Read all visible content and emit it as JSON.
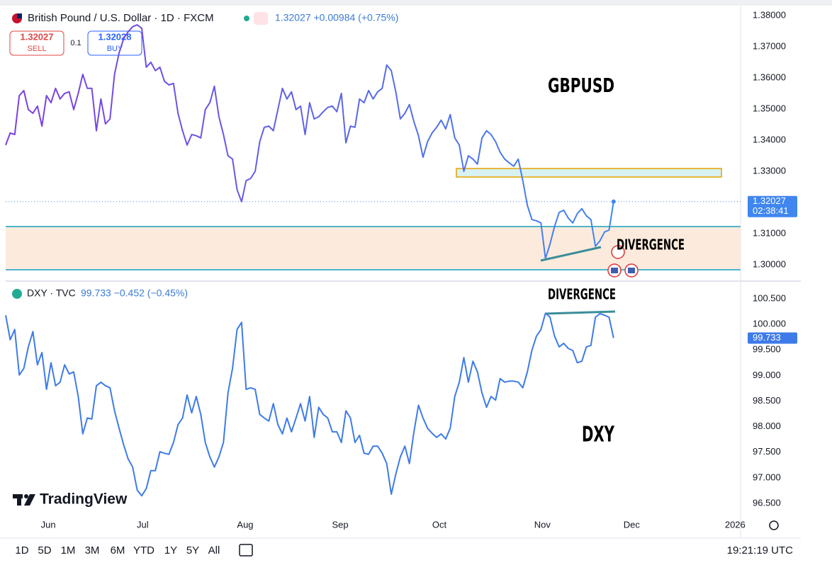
{
  "header": {
    "symbol": "British Pound / U.S. Dollar · 1D · FXCM",
    "quote": "1.32027 +0.00984 (+0.75%)"
  },
  "trade": {
    "sell_price": "1.32027",
    "sell": "SELL",
    "qty": "0.1",
    "buy_price": "1.32028",
    "buy": "BUY"
  },
  "logo": "TradingView",
  "toolbar": {
    "ranges": [
      "1D",
      "5D",
      "1M",
      "3M",
      "6M",
      "YTD",
      "1Y",
      "5Y",
      "All"
    ],
    "time": "19:21:19 UTC"
  },
  "chart_data": [
    {
      "type": "line",
      "title": "GBPUSD",
      "color": "#6a55e6",
      "annotations": [
        "GBPUSD",
        "DIVERGENCE"
      ],
      "last_label": "1.32027",
      "countdown": "02:38:41",
      "xlim": [
        0,
        162
      ],
      "ylim": [
        1.2952,
        1.3827
      ],
      "yticks": [
        {
          "value": 1.38,
          "label": "1.38000"
        },
        {
          "value": 1.37,
          "label": "1.37000"
        },
        {
          "value": 1.36,
          "label": "1.36000"
        },
        {
          "value": 1.35,
          "label": "1.35000"
        },
        {
          "value": 1.34,
          "label": "1.34000"
        },
        {
          "value": 1.33,
          "label": "1.33000"
        },
        {
          "value": 1.32,
          "label": "1.32000"
        },
        {
          "value": 1.31,
          "label": "1.31000"
        },
        {
          "value": 1.3,
          "label": "1.30000"
        }
      ],
      "values": [
        1.3384,
        1.3423,
        1.3418,
        1.3543,
        1.3559,
        1.3498,
        1.3486,
        1.3509,
        1.3445,
        1.3543,
        1.352,
        1.3566,
        1.3532,
        1.355,
        1.3555,
        1.3498,
        1.355,
        1.3611,
        1.3566,
        1.3566,
        1.343,
        1.3532,
        1.3452,
        1.3468,
        1.3611,
        1.368,
        1.3725,
        1.3748,
        1.3764,
        1.377,
        1.3759,
        1.3634,
        1.365,
        1.3623,
        1.3634,
        1.3589,
        1.3577,
        1.3582,
        1.3486,
        1.343,
        1.3384,
        1.3418,
        1.3414,
        1.3407,
        1.3498,
        1.352,
        1.3573,
        1.3475,
        1.3418,
        1.335,
        1.3339,
        1.3241,
        1.3202,
        1.327,
        1.3277,
        1.33,
        1.3395,
        1.3441,
        1.3445,
        1.343,
        1.3498,
        1.3566,
        1.3532,
        1.3555,
        1.3498,
        1.3509,
        1.3418,
        1.352,
        1.3468,
        1.3475,
        1.3491,
        1.3505,
        1.3509,
        1.3491,
        1.355,
        1.3391,
        1.3445,
        1.3441,
        1.3532,
        1.352,
        1.3559,
        1.3532,
        1.3555,
        1.3566,
        1.3641,
        1.3623,
        1.3555,
        1.3468,
        1.3486,
        1.3514,
        1.3459,
        1.3414,
        1.3345,
        1.3395,
        1.3423,
        1.3441,
        1.3464,
        1.3436,
        1.3482,
        1.3407,
        1.3384,
        1.33,
        1.335,
        1.3339,
        1.3323,
        1.3407,
        1.343,
        1.3418,
        1.3395,
        1.3361,
        1.3339,
        1.3327,
        1.3316,
        1.3339,
        1.327,
        1.3191,
        1.3145,
        1.3141,
        1.3134,
        1.302,
        1.3066,
        1.3123,
        1.3168,
        1.3175,
        1.315,
        1.3134,
        1.3164,
        1.318,
        1.3157,
        1.3145,
        1.3059,
        1.3077,
        1.3105,
        1.3111,
        1.32027
      ]
    },
    {
      "type": "line",
      "title": "DXY · TVC",
      "quote": "99.733 −0.452 (−0.45%)",
      "color": "#3e7be8",
      "annotations": [
        "DIVERGENCE",
        "DXY"
      ],
      "last_label": "99.733",
      "xlim": [
        0,
        162
      ],
      "ylim": [
        96.237,
        100.805
      ],
      "yticks": [
        {
          "value": 100.5,
          "label": "100.500"
        },
        {
          "value": 100,
          "label": "100.000"
        },
        {
          "value": 99.5,
          "label": "99.500"
        },
        {
          "value": 99,
          "label": "99.000"
        },
        {
          "value": 98.5,
          "label": "98.500"
        },
        {
          "value": 98,
          "label": "98.000"
        },
        {
          "value": 97.5,
          "label": "97.500"
        },
        {
          "value": 97,
          "label": "97.000"
        },
        {
          "value": 96.5,
          "label": "96.500"
        }
      ],
      "xticks": [
        {
          "value": 9.4,
          "label": "Jun"
        },
        {
          "value": 30.2,
          "label": "Jul"
        },
        {
          "value": 52.8,
          "label": "Aug"
        },
        {
          "value": 73.75,
          "label": "Sep"
        },
        {
          "value": 95.6,
          "label": "Oct"
        },
        {
          "value": 118.3,
          "label": "Nov"
        },
        {
          "value": 138,
          "label": "Dec"
        },
        {
          "value": 160.8,
          "label": "2026"
        }
      ],
      "values": [
        100.18,
        99.7,
        99.9,
        99.01,
        99.14,
        99.56,
        99.86,
        99.21,
        99.45,
        98.73,
        99.25,
        98.8,
        98.87,
        99.21,
        99.03,
        99.07,
        98.59,
        97.86,
        98.17,
        98.15,
        98.8,
        98.87,
        98.8,
        98.76,
        98.31,
        97.97,
        97.65,
        97.37,
        97.21,
        96.76,
        96.65,
        96.79,
        97.14,
        97.14,
        97.51,
        97.48,
        97.46,
        97.69,
        98.04,
        98.17,
        98.62,
        98.27,
        98.59,
        98.24,
        97.69,
        97.41,
        97.21,
        97.41,
        97.69,
        98.66,
        99.14,
        99.9,
        100.04,
        98.73,
        98.76,
        98.73,
        98.24,
        98.17,
        98.11,
        98.45,
        98.04,
        97.86,
        98.17,
        97.9,
        98.17,
        98.45,
        98.11,
        98.59,
        97.79,
        98.38,
        98.24,
        98.17,
        97.9,
        97.9,
        97.69,
        98.31,
        98.17,
        97.69,
        97.83,
        97.48,
        97.46,
        97.62,
        97.62,
        97.48,
        97.28,
        96.68,
        97.07,
        97.41,
        97.62,
        97.28,
        97.9,
        98.42,
        98.17,
        97.97,
        97.87,
        97.79,
        97.86,
        97.76,
        97.97,
        98.59,
        98.87,
        99.35,
        98.87,
        99.28,
        99.07,
        98.66,
        98.38,
        98.59,
        98.52,
        98.94,
        98.87,
        98.89,
        98.89,
        98.87,
        98.76,
        99.07,
        99.49,
        99.77,
        99.9,
        100.22,
        100.14,
        99.77,
        99.56,
        99.63,
        99.53,
        99.49,
        99.25,
        99.28,
        99.56,
        99.59,
        100.14,
        100.21,
        100.18,
        100.14,
        99.733
      ]
    }
  ]
}
